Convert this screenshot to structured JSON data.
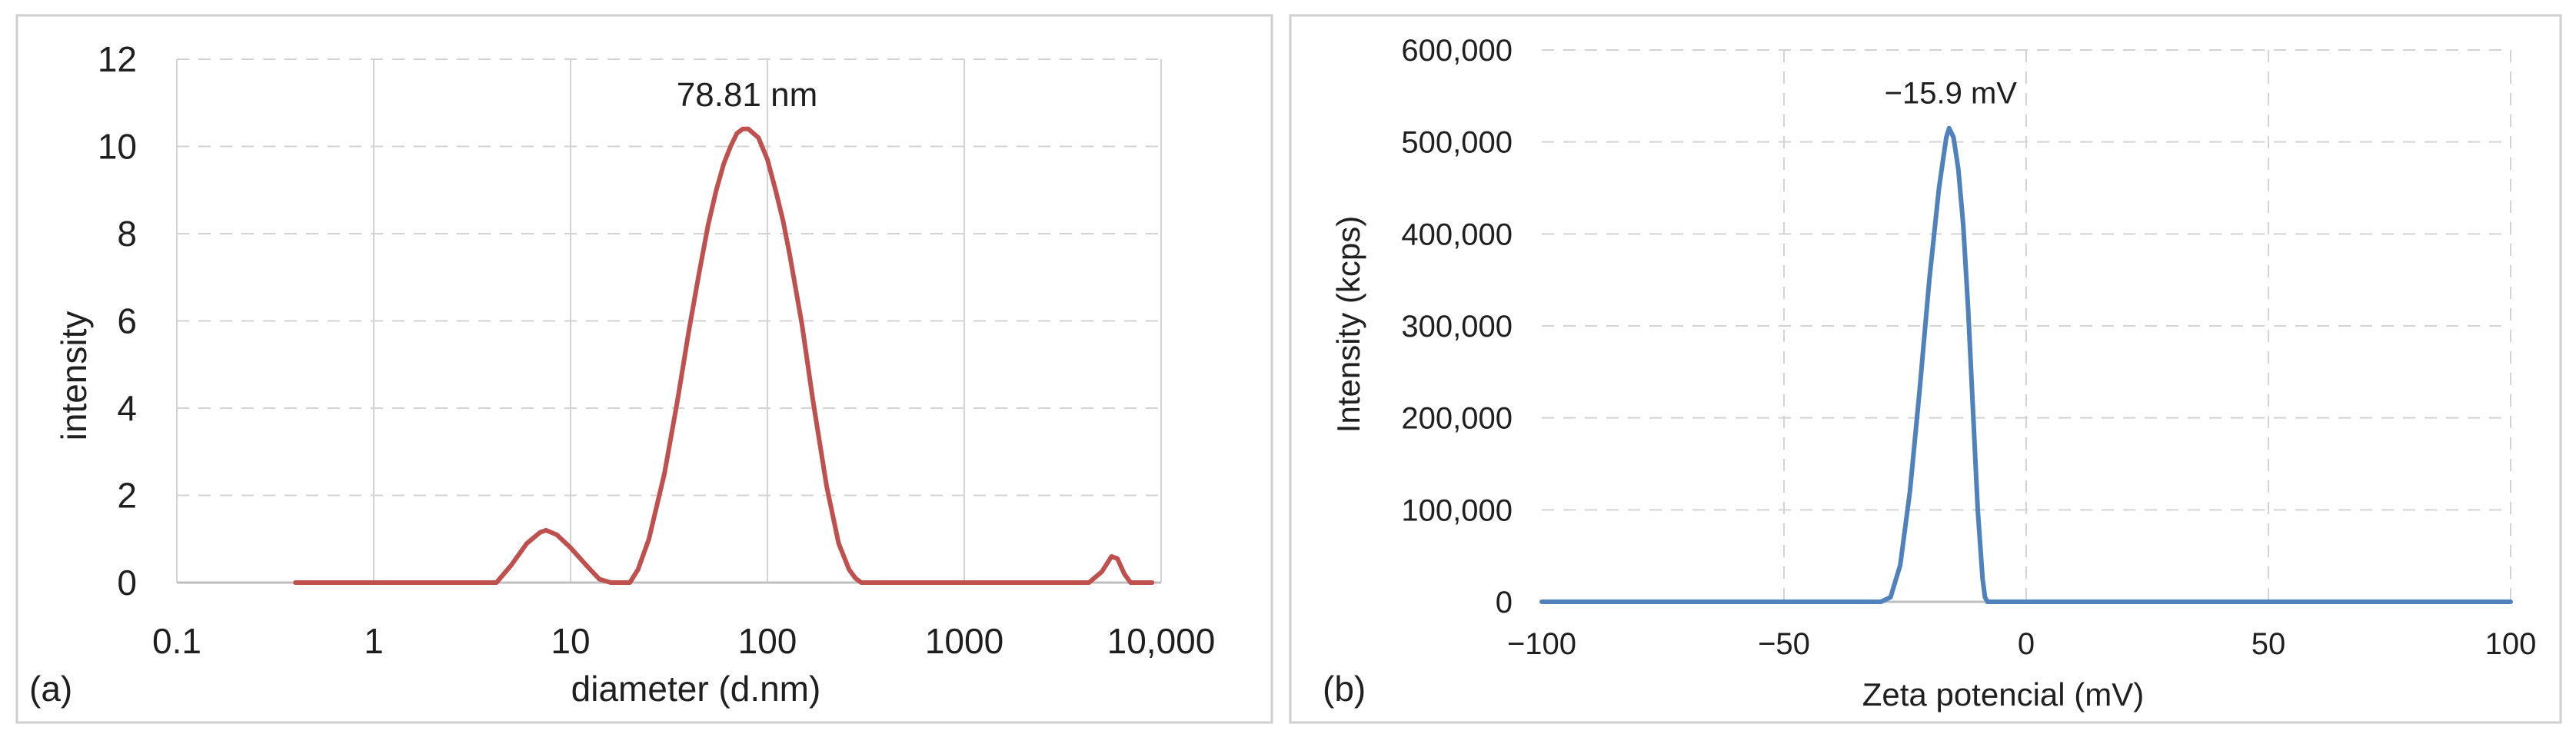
{
  "chart_data": [
    {
      "type": "line",
      "panel_label": "(a)",
      "title": "",
      "xlabel": "diameter (d.nm)",
      "ylabel": "intensity",
      "x_scale": "log",
      "xlim": [
        0.1,
        10000
      ],
      "ylim": [
        0,
        12
      ],
      "x_ticks": [
        0.1,
        1,
        10,
        100,
        1000,
        10000
      ],
      "x_tick_labels": [
        "0.1",
        "1",
        "10",
        "100",
        "1000",
        "10,000"
      ],
      "y_ticks": [
        0,
        2,
        4,
        6,
        8,
        10,
        12
      ],
      "y_tick_labels": [
        "0",
        "2",
        "4",
        "6",
        "8",
        "10",
        "12"
      ],
      "grid": true,
      "color": "#c0504d",
      "annotation": {
        "text": "78.81 nm",
        "x": 78.81,
        "y": 10.4
      },
      "series": [
        {
          "x": [
            0.4,
            1,
            3,
            4.2,
            5,
            6,
            7,
            7.5,
            8.5,
            10,
            12,
            14,
            16,
            18,
            20,
            22,
            25,
            30,
            35,
            40,
            45,
            50,
            55,
            60,
            65,
            70,
            75,
            80,
            90,
            100,
            110,
            120,
            130,
            150,
            170,
            200,
            230,
            260,
            280,
            300,
            400,
            1000,
            3000,
            4300,
            5000,
            5600,
            6000,
            6500,
            7000,
            9000
          ],
          "y": [
            0,
            0,
            0,
            0,
            0.4,
            0.9,
            1.15,
            1.2,
            1.1,
            0.8,
            0.4,
            0.08,
            0,
            0,
            0,
            0.3,
            1.0,
            2.5,
            4.2,
            5.8,
            7.1,
            8.2,
            9.0,
            9.6,
            10.0,
            10.3,
            10.4,
            10.4,
            10.2,
            9.7,
            9.0,
            8.3,
            7.5,
            5.9,
            4.2,
            2.2,
            0.9,
            0.3,
            0.1,
            0,
            0,
            0,
            0,
            0,
            0.25,
            0.6,
            0.55,
            0.2,
            0,
            0
          ]
        }
      ]
    },
    {
      "type": "line",
      "panel_label": "(b)",
      "title": "",
      "xlabel": "Zeta potencial (mV)",
      "ylabel": "Intensity (kcps)",
      "xlim": [
        -100,
        100
      ],
      "ylim": [
        0,
        600000
      ],
      "x_ticks": [
        -100,
        -50,
        0,
        50,
        100
      ],
      "x_tick_labels": [
        "−100",
        "−50",
        "0",
        "50",
        "100"
      ],
      "y_ticks": [
        0,
        100000,
        200000,
        300000,
        400000,
        500000,
        600000
      ],
      "y_tick_labels": [
        "0",
        "100,000",
        "200,000",
        "300,000",
        "400,000",
        "500,000",
        "600,000"
      ],
      "grid": true,
      "color": "#4f81bd",
      "annotation": {
        "text": "−15.9 mV",
        "x": -15.9,
        "y": 515000
      },
      "series": [
        {
          "x": [
            -100,
            -30,
            -28,
            -26,
            -24,
            -22,
            -20,
            -18,
            -16.5,
            -15.9,
            -15,
            -14,
            -13,
            -12,
            -11,
            -10,
            -9,
            -8.5,
            -8,
            -5,
            0,
            50,
            100
          ],
          "y": [
            0,
            0,
            5000,
            40000,
            120000,
            230000,
            350000,
            450000,
            505000,
            515000,
            505000,
            470000,
            410000,
            320000,
            210000,
            100000,
            25000,
            5000,
            0,
            0,
            0,
            0,
            0
          ]
        }
      ]
    }
  ]
}
